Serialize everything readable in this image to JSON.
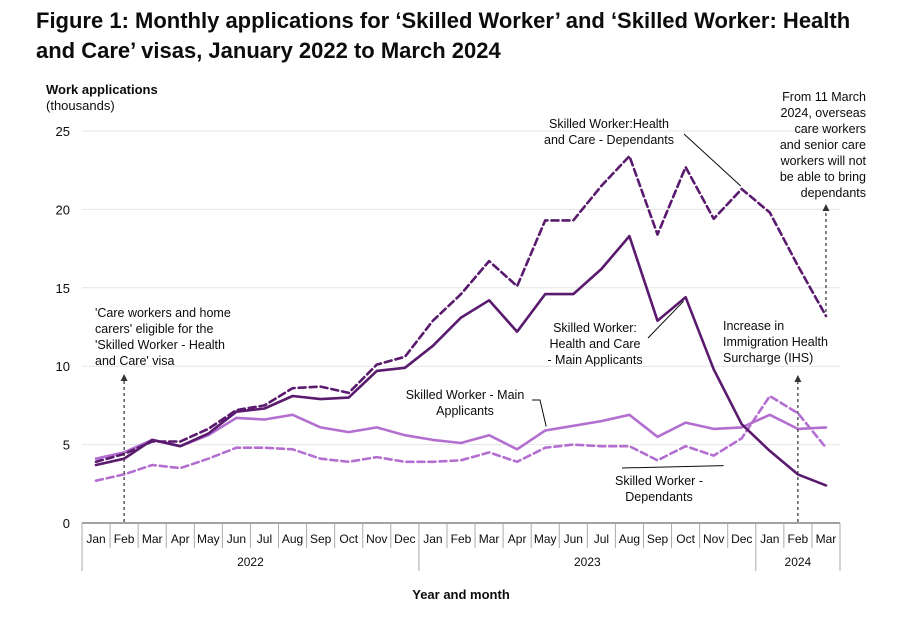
{
  "figure": {
    "title": "Figure 1: Monthly applications for ‘Skilled Worker’ and ‘Skilled Worker: Health and Care’ visas, January 2022 to March 2024"
  },
  "colors": {
    "dark_purple": "#5a1a6e",
    "light_purple": "#b36fd0",
    "gridline": "#e6e6e6",
    "axis": "#444444",
    "annotation": "#333333"
  },
  "chart_data": {
    "type": "line",
    "title": "Figure 1: Monthly applications for ‘Skilled Worker’ and ‘Skilled Worker: Health and Care’ visas, January 2022 to March 2024",
    "ylabel_line1": "Work applications",
    "ylabel_line2": "(thousands)",
    "xlabel": "Year and month",
    "ylim": [
      0,
      25
    ],
    "yticks": [
      0,
      5,
      10,
      15,
      20,
      25
    ],
    "grid": true,
    "categories": [
      "Jan",
      "Feb",
      "Mar",
      "Apr",
      "May",
      "Jun",
      "Jul",
      "Aug",
      "Sep",
      "Oct",
      "Nov",
      "Dec",
      "Jan",
      "Feb",
      "Mar",
      "Apr",
      "May",
      "Jun",
      "Jul",
      "Aug",
      "Sep",
      "Oct",
      "Nov",
      "Dec",
      "Jan",
      "Feb",
      "Mar"
    ],
    "years": [
      {
        "label": "2022",
        "start": 0,
        "end": 11
      },
      {
        "label": "2023",
        "start": 12,
        "end": 23
      },
      {
        "label": "2024",
        "start": 24,
        "end": 26
      }
    ],
    "series": [
      {
        "name": "Skilled Worker:Health and Care - Dependants",
        "label_lines": [
          "Skilled Worker:Health",
          "and Care - Dependants"
        ],
        "color": "#5a1a6e",
        "dashed": true,
        "values": [
          3.9,
          4.4,
          5.2,
          5.2,
          6.0,
          7.2,
          7.5,
          8.6,
          8.7,
          8.3,
          10.1,
          10.6,
          12.9,
          14.6,
          16.7,
          15.1,
          19.3,
          19.3,
          21.5,
          23.4,
          18.4,
          22.7,
          19.4,
          21.3,
          19.8,
          16.4,
          13.2
        ]
      },
      {
        "name": "Skilled Worker: Health and Care - Main Applicants",
        "label_lines": [
          "Skilled Worker:",
          "Health and Care",
          "- Main Applicants"
        ],
        "color": "#5a1a6e",
        "dashed": false,
        "values": [
          3.7,
          4.1,
          5.3,
          4.9,
          5.7,
          7.1,
          7.3,
          8.1,
          7.9,
          8.0,
          9.7,
          9.9,
          11.3,
          13.1,
          14.2,
          12.2,
          14.6,
          14.6,
          16.2,
          18.3,
          12.9,
          14.4,
          9.8,
          6.3,
          4.6,
          3.1,
          2.4
        ]
      },
      {
        "name": "Skilled Worker - Main Applicants",
        "label_lines": [
          "Skilled Worker - Main",
          "Applicants"
        ],
        "color": "#b36fd0",
        "dashed": false,
        "values": [
          4.1,
          4.5,
          5.3,
          4.9,
          5.6,
          6.7,
          6.6,
          6.9,
          6.1,
          5.8,
          6.1,
          5.6,
          5.3,
          5.1,
          5.6,
          4.7,
          5.9,
          6.2,
          6.5,
          6.9,
          5.5,
          6.4,
          6.0,
          6.1,
          6.9,
          6.0,
          6.1
        ]
      },
      {
        "name": "Skilled Worker - Dependants",
        "label_lines": [
          "Skilled Worker -",
          "Dependants"
        ],
        "color": "#b36fd0",
        "dashed": true,
        "values": [
          2.7,
          3.1,
          3.7,
          3.5,
          4.1,
          4.8,
          4.8,
          4.7,
          4.1,
          3.9,
          4.2,
          3.9,
          3.9,
          4.0,
          4.5,
          3.9,
          4.8,
          5.0,
          4.9,
          4.9,
          4.0,
          4.9,
          4.3,
          5.4,
          8.1,
          7.0,
          4.8
        ]
      }
    ],
    "annotations": [
      {
        "name": "care-workers-eligible",
        "lines": [
          "'Care workers and home",
          "carers' eligible for the",
          "'Skilled Worker - Health",
          "and Care' visa"
        ],
        "month_index": 1
      },
      {
        "name": "ihs-increase",
        "lines": [
          "Increase in",
          "Immigration Health",
          "Surcharge (IHS)"
        ],
        "month_index": 25
      },
      {
        "name": "dependants-ban",
        "lines": [
          "From 11 March",
          "2024, overseas",
          "care workers",
          "and senior care",
          "workers will not",
          "be able to bring",
          "dependants"
        ],
        "month_index": 26
      }
    ]
  }
}
